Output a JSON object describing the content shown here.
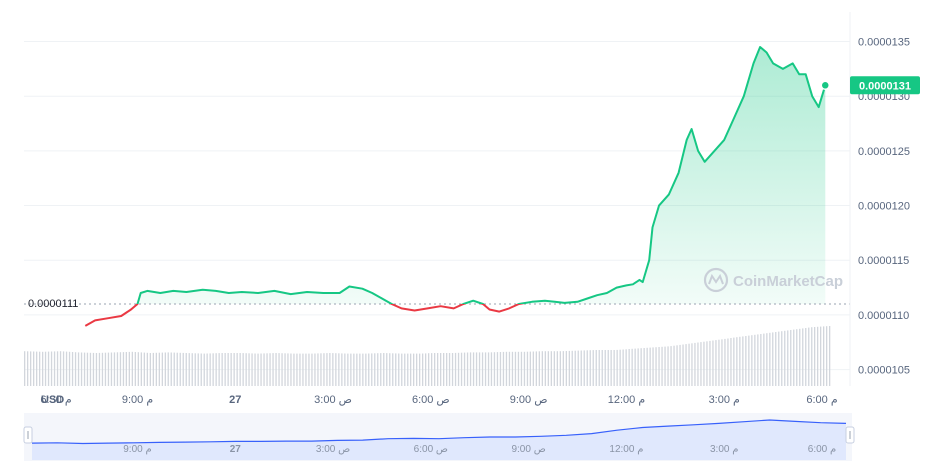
{
  "chart_data": {
    "type": "line",
    "watermark": "CoinMarketCap",
    "currency_label": "USD",
    "open_price_label": "0.0000111",
    "open_price": 1.11e-05,
    "current_price_label": "0.0000131",
    "current_price": 1.31e-05,
    "colors": {
      "up": "#16c784",
      "down": "#ea3943",
      "volume": "#d2d6dc",
      "navigator_fill": "#e8eefc",
      "navigator_line": "#3861fb"
    },
    "y_axis": {
      "range": [
        1.035e-05,
        1.377e-05
      ],
      "ticks": [
        {
          "value": 1.05e-05,
          "label": "0.0000105"
        },
        {
          "value": 1.1e-05,
          "label": "0.0000110"
        },
        {
          "value": 1.15e-05,
          "label": "0.0000115"
        },
        {
          "value": 1.2e-05,
          "label": "0.0000120"
        },
        {
          "value": 1.25e-05,
          "label": "0.0000125"
        },
        {
          "value": 1.3e-05,
          "label": "0.0000130"
        },
        {
          "value": 1.35e-05,
          "label": "0.0000135"
        }
      ]
    },
    "x_axis": {
      "range": [
        0,
        24.3
      ],
      "ticks": [
        {
          "t": 0.0,
          "label": "6:30 م"
        },
        {
          "t": 2.5,
          "label": "9:00 م"
        },
        {
          "t": 5.5,
          "label": "27"
        },
        {
          "t": 8.5,
          "label": "3:00 ص"
        },
        {
          "t": 11.5,
          "label": "6:00 ص"
        },
        {
          "t": 14.5,
          "label": "9:00 ص"
        },
        {
          "t": 17.5,
          "label": "12:00 م"
        },
        {
          "t": 20.5,
          "label": "3:00 م"
        },
        {
          "t": 23.5,
          "label": "6:00 م"
        }
      ]
    },
    "navigator_ticks": [
      {
        "t": 2.5,
        "label": "9:00 م"
      },
      {
        "t": 5.5,
        "label": "27"
      },
      {
        "t": 8.5,
        "label": "3:00 ص"
      },
      {
        "t": 11.5,
        "label": "6:00 ص"
      },
      {
        "t": 14.5,
        "label": "9:00 ص"
      },
      {
        "t": 17.5,
        "label": "12:00 م"
      },
      {
        "t": 20.5,
        "label": "3:00 م"
      },
      {
        "t": 23.5,
        "label": "6:00 م"
      }
    ],
    "series": [
      {
        "points": [
          [
            0.9,
            1.09e-05
          ],
          [
            1.2,
            1.095e-05
          ],
          [
            1.6,
            1.097e-05
          ],
          [
            2.0,
            1.099e-05
          ],
          [
            2.3,
            1.105e-05
          ],
          [
            2.5,
            1.11e-05
          ],
          [
            2.6,
            1.12e-05
          ],
          [
            2.8,
            1.122e-05
          ],
          [
            3.2,
            1.12e-05
          ],
          [
            3.6,
            1.122e-05
          ],
          [
            4.0,
            1.121e-05
          ],
          [
            4.5,
            1.123e-05
          ],
          [
            4.9,
            1.122e-05
          ],
          [
            5.3,
            1.12e-05
          ],
          [
            5.7,
            1.121e-05
          ],
          [
            6.2,
            1.12e-05
          ],
          [
            6.7,
            1.122e-05
          ],
          [
            7.2,
            1.119e-05
          ],
          [
            7.7,
            1.121e-05
          ],
          [
            8.2,
            1.12e-05
          ],
          [
            8.7,
            1.12e-05
          ],
          [
            9.0,
            1.126e-05
          ],
          [
            9.4,
            1.124e-05
          ],
          [
            9.7,
            1.12e-05
          ],
          [
            10.0,
            1.115e-05
          ],
          [
            10.3,
            1.11e-05
          ],
          [
            10.6,
            1.106e-05
          ],
          [
            11.0,
            1.104e-05
          ],
          [
            11.4,
            1.106e-05
          ],
          [
            11.8,
            1.108e-05
          ],
          [
            12.2,
            1.106e-05
          ],
          [
            12.5,
            1.11e-05
          ],
          [
            12.8,
            1.113e-05
          ],
          [
            13.1,
            1.11e-05
          ],
          [
            13.3,
            1.105e-05
          ],
          [
            13.6,
            1.103e-05
          ],
          [
            13.9,
            1.106e-05
          ],
          [
            14.2,
            1.11e-05
          ],
          [
            14.6,
            1.112e-05
          ],
          [
            15.0,
            1.113e-05
          ],
          [
            15.3,
            1.112e-05
          ],
          [
            15.6,
            1.111e-05
          ],
          [
            16.0,
            1.112e-05
          ],
          [
            16.3,
            1.115e-05
          ],
          [
            16.6,
            1.118e-05
          ],
          [
            16.9,
            1.12e-05
          ],
          [
            17.2,
            1.125e-05
          ],
          [
            17.5,
            1.127e-05
          ],
          [
            17.7,
            1.128e-05
          ],
          [
            17.9,
            1.132e-05
          ],
          [
            18.0,
            1.13e-05
          ],
          [
            18.2,
            1.15e-05
          ],
          [
            18.3,
            1.18e-05
          ],
          [
            18.5,
            1.2e-05
          ],
          [
            18.8,
            1.21e-05
          ],
          [
            19.1,
            1.23e-05
          ],
          [
            19.35,
            1.26e-05
          ],
          [
            19.5,
            1.27e-05
          ],
          [
            19.7,
            1.25e-05
          ],
          [
            19.9,
            1.24e-05
          ],
          [
            20.2,
            1.25e-05
          ],
          [
            20.5,
            1.26e-05
          ],
          [
            20.8,
            1.28e-05
          ],
          [
            21.1,
            1.3e-05
          ],
          [
            21.4,
            1.33e-05
          ],
          [
            21.6,
            1.345e-05
          ],
          [
            21.8,
            1.34e-05
          ],
          [
            22.0,
            1.33e-05
          ],
          [
            22.3,
            1.325e-05
          ],
          [
            22.6,
            1.33e-05
          ],
          [
            22.8,
            1.32e-05
          ],
          [
            23.0,
            1.32e-05
          ],
          [
            23.2,
            1.3e-05
          ],
          [
            23.4,
            1.29e-05
          ],
          [
            23.6,
            1.31e-05
          ]
        ]
      }
    ],
    "volume": [
      0.58,
      0.57,
      0.58,
      0.56,
      0.55,
      0.56,
      0.57,
      0.55,
      0.56,
      0.55,
      0.54,
      0.55,
      0.55,
      0.54,
      0.55,
      0.54,
      0.54,
      0.55,
      0.54,
      0.54,
      0.55,
      0.54,
      0.54,
      0.55,
      0.55,
      0.56,
      0.56,
      0.57,
      0.57,
      0.58,
      0.58,
      0.59,
      0.6,
      0.6,
      0.62,
      0.64,
      0.66,
      0.7,
      0.74,
      0.78,
      0.82,
      0.86,
      0.9,
      0.94,
      0.98,
      1.0
    ],
    "navigator_line": [
      0.32,
      0.33,
      0.31,
      0.32,
      0.33,
      0.34,
      0.35,
      0.36,
      0.37,
      0.37,
      0.38,
      0.38,
      0.4,
      0.41,
      0.45,
      0.46,
      0.45,
      0.48,
      0.5,
      0.5,
      0.52,
      0.55,
      0.6,
      0.7,
      0.78,
      0.82,
      0.86,
      0.9,
      0.95,
      1.0,
      0.96,
      0.92,
      0.9
    ]
  }
}
